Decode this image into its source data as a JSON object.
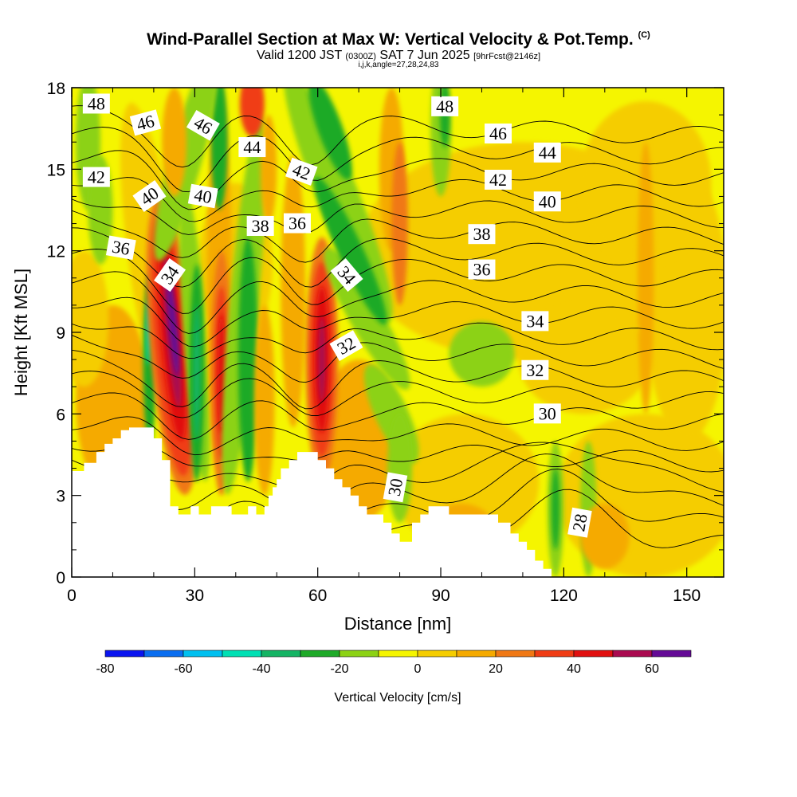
{
  "title": {
    "main": "Wind-Parallel Section at Max W: Vertical Velocity & Pot.Temp.",
    "main_suffix": "(C)",
    "valid_prefix": "Valid 1200 JST",
    "valid_small": "(0300Z)",
    "valid_date": "SAT 7 Jun 2025",
    "valid_fcst": "[9hrFcst@2146z]",
    "indices": "i,j,k,angle=27,28,24,83"
  },
  "chart_data": {
    "type": "heatmap",
    "xlabel": "Distance [nm]",
    "ylabel": "Height [Kft MSL]",
    "xlim": [
      0,
      159
    ],
    "ylim": [
      0,
      18
    ],
    "x_ticks": [
      "0",
      "30",
      "60",
      "90",
      "120",
      "150"
    ],
    "y_ticks": [
      "0",
      "3",
      "6",
      "9",
      "12",
      "15",
      "18"
    ],
    "x_tick_values": [
      0,
      30,
      60,
      90,
      120,
      150
    ],
    "y_tick_values": [
      0,
      3,
      6,
      9,
      12,
      15,
      18
    ],
    "colorbar": {
      "label": "Vertical Velocity [cm/s]",
      "tick_labels": [
        "-80",
        "-60",
        "-40",
        "-20",
        "0",
        "20",
        "40",
        "60"
      ],
      "tick_values": [
        -80,
        -60,
        -40,
        -20,
        0,
        20,
        40,
        60
      ],
      "levels": [
        -80,
        -70,
        -60,
        -50,
        -40,
        -30,
        -20,
        -10,
        0,
        10,
        20,
        30,
        40,
        50,
        60,
        70
      ],
      "colors": [
        "#0a14f0",
        "#0a6ef0",
        "#00c0f0",
        "#00e0b4",
        "#14b464",
        "#1eaa28",
        "#8cd214",
        "#f5f500",
        "#f5cd00",
        "#f5aa00",
        "#f07814",
        "#f03c14",
        "#e10f0f",
        "#aa0a50",
        "#640a96"
      ]
    },
    "terrain": [
      [
        0,
        3.9
      ],
      [
        3,
        3.9
      ],
      [
        3,
        4.2
      ],
      [
        6,
        4.2
      ],
      [
        6,
        4.6
      ],
      [
        8,
        4.6
      ],
      [
        8,
        4.9
      ],
      [
        10,
        4.9
      ],
      [
        10,
        5.1
      ],
      [
        12,
        5.1
      ],
      [
        12,
        5.4
      ],
      [
        14,
        5.4
      ],
      [
        14,
        5.5
      ],
      [
        20,
        5.5
      ],
      [
        20,
        5.1
      ],
      [
        22,
        5.1
      ],
      [
        22,
        4.3
      ],
      [
        24,
        4.3
      ],
      [
        24,
        2.6
      ],
      [
        26,
        2.6
      ],
      [
        26,
        2.3
      ],
      [
        29,
        2.3
      ],
      [
        29,
        2.6
      ],
      [
        31,
        2.6
      ],
      [
        31,
        2.3
      ],
      [
        34,
        2.3
      ],
      [
        34,
        2.6
      ],
      [
        39,
        2.6
      ],
      [
        39,
        2.3
      ],
      [
        43,
        2.3
      ],
      [
        43,
        2.6
      ],
      [
        45,
        2.6
      ],
      [
        45,
        2.3
      ],
      [
        47,
        2.3
      ],
      [
        47,
        2.6
      ],
      [
        48,
        2.6
      ],
      [
        48,
        3.0
      ],
      [
        49,
        3.0
      ],
      [
        49,
        3.3
      ],
      [
        50,
        3.3
      ],
      [
        50,
        3.6
      ],
      [
        51,
        3.6
      ],
      [
        51,
        4.0
      ],
      [
        53,
        4.0
      ],
      [
        53,
        4.3
      ],
      [
        55,
        4.3
      ],
      [
        55,
        4.6
      ],
      [
        60,
        4.6
      ],
      [
        60,
        4.3
      ],
      [
        62,
        4.3
      ],
      [
        62,
        4.0
      ],
      [
        64,
        4.0
      ],
      [
        64,
        3.6
      ],
      [
        66,
        3.6
      ],
      [
        66,
        3.3
      ],
      [
        68,
        3.3
      ],
      [
        68,
        3.0
      ],
      [
        70,
        3.0
      ],
      [
        70,
        2.6
      ],
      [
        72,
        2.6
      ],
      [
        72,
        2.3
      ],
      [
        76,
        2.3
      ],
      [
        76,
        2.0
      ],
      [
        78,
        2.0
      ],
      [
        78,
        1.6
      ],
      [
        80,
        1.6
      ],
      [
        80,
        1.3
      ],
      [
        83,
        1.3
      ],
      [
        83,
        2.0
      ],
      [
        85,
        2.0
      ],
      [
        85,
        2.3
      ],
      [
        87,
        2.3
      ],
      [
        87,
        2.6
      ],
      [
        92,
        2.6
      ],
      [
        92,
        2.3
      ],
      [
        104,
        2.3
      ],
      [
        104,
        2.0
      ],
      [
        107,
        2.0
      ],
      [
        107,
        1.6
      ],
      [
        109,
        1.6
      ],
      [
        109,
        1.3
      ],
      [
        111,
        1.3
      ],
      [
        111,
        1.0
      ],
      [
        113,
        1.0
      ],
      [
        113,
        0.6
      ],
      [
        115,
        0.6
      ],
      [
        115,
        0.3
      ],
      [
        117,
        0.3
      ],
      [
        117,
        0.0
      ]
    ],
    "theta_contour_labels": [
      {
        "text": "48",
        "x": 6,
        "y": 17.4,
        "angle": 0
      },
      {
        "text": "46",
        "x": 18,
        "y": 16.7,
        "angle": -15
      },
      {
        "text": "46",
        "x": 32,
        "y": 16.6,
        "angle": 30
      },
      {
        "text": "44",
        "x": 44,
        "y": 15.8,
        "angle": 0
      },
      {
        "text": "42",
        "x": 6,
        "y": 14.7,
        "angle": 0
      },
      {
        "text": "40",
        "x": 19,
        "y": 14.0,
        "angle": -35
      },
      {
        "text": "40",
        "x": 32,
        "y": 14.0,
        "angle": 10
      },
      {
        "text": "42",
        "x": 56,
        "y": 14.9,
        "angle": 20
      },
      {
        "text": "38",
        "x": 46,
        "y": 12.9,
        "angle": 0
      },
      {
        "text": "36",
        "x": 55,
        "y": 13.0,
        "angle": 0
      },
      {
        "text": "36",
        "x": 12,
        "y": 12.1,
        "angle": 10
      },
      {
        "text": "34",
        "x": 24,
        "y": 11.1,
        "angle": -55
      },
      {
        "text": "34",
        "x": 67,
        "y": 11.1,
        "angle": 50
      },
      {
        "text": "32",
        "x": 67,
        "y": 8.5,
        "angle": -30
      },
      {
        "text": "30",
        "x": 79,
        "y": 3.3,
        "angle": -80
      },
      {
        "text": "48",
        "x": 91,
        "y": 17.3,
        "angle": 0
      },
      {
        "text": "46",
        "x": 104,
        "y": 16.3,
        "angle": 0
      },
      {
        "text": "44",
        "x": 116,
        "y": 15.6,
        "angle": 0
      },
      {
        "text": "42",
        "x": 104,
        "y": 14.6,
        "angle": 0
      },
      {
        "text": "40",
        "x": 116,
        "y": 13.8,
        "angle": 0
      },
      {
        "text": "38",
        "x": 100,
        "y": 12.6,
        "angle": 0
      },
      {
        "text": "36",
        "x": 100,
        "y": 11.3,
        "angle": 0
      },
      {
        "text": "34",
        "x": 113,
        "y": 9.4,
        "angle": 0
      },
      {
        "text": "32",
        "x": 113,
        "y": 7.6,
        "angle": 0
      },
      {
        "text": "30",
        "x": 116,
        "y": 6.0,
        "angle": 0
      },
      {
        "text": "28",
        "x": 124,
        "y": 2.0,
        "angle": -80
      }
    ]
  }
}
